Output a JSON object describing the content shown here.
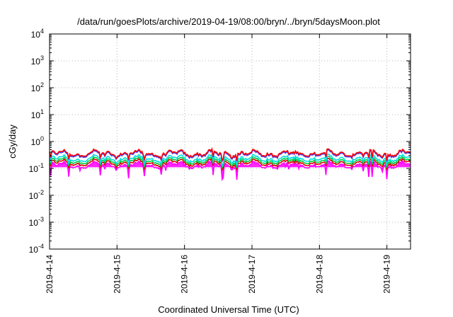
{
  "chart_data": {
    "type": "line",
    "title": "/data/run/goesPlots/archive/2019-04-19/08:00/bryn/../bryn/5daysMoon.plot",
    "xlabel": "Coordinated Universal Time (UTC)",
    "ylabel": "cGy/day",
    "yscale": "log",
    "ylim": [
      0.0001,
      10000
    ],
    "xlim": [
      0,
      5.35
    ],
    "grid": true,
    "y_tick_labels": [
      {
        "base": "10",
        "exp": "4"
      },
      {
        "base": "10",
        "exp": "3"
      },
      {
        "base": "10",
        "exp": "2"
      },
      {
        "base": "10",
        "exp": "1"
      },
      {
        "base": "10",
        "exp": "0"
      },
      {
        "base": "10",
        "exp": "-1"
      },
      {
        "base": "10",
        "exp": "-2"
      },
      {
        "base": "10",
        "exp": "-3"
      },
      {
        "base": "10",
        "exp": "-4"
      }
    ],
    "x_tick_labels": [
      "2019-4-14",
      "2019-4-15",
      "2019-4-16",
      "2019-4-17",
      "2019-4-18",
      "2019-4-19"
    ],
    "x_tick_positions": [
      0,
      1,
      2,
      3,
      4,
      5
    ],
    "series": [
      {
        "color": "#ff00ff",
        "base": 0.13,
        "fill_to": 0.11
      },
      {
        "color": "#dd0000",
        "base": 0.16
      },
      {
        "color": "#00cc44",
        "base": 0.19
      },
      {
        "color": "#00dddd",
        "base": 0.23
      },
      {
        "color": "#4444ff",
        "base": 0.33
      },
      {
        "color": "#ff0000",
        "base": 0.36
      }
    ]
  }
}
